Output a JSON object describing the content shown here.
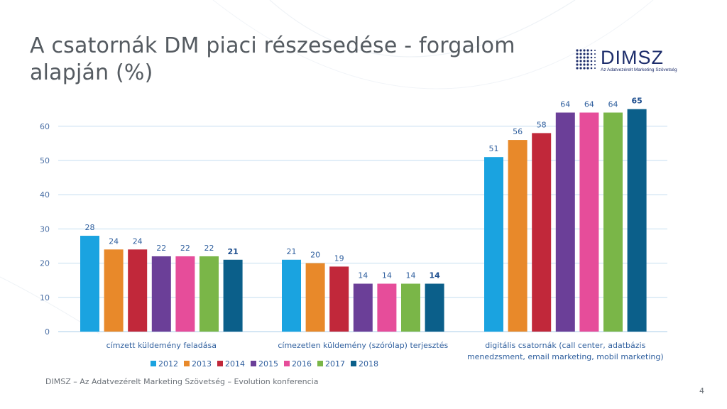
{
  "title_lines": [
    "A csatornák DM piaci részesedése - forgalom",
    "alapján (%)"
  ],
  "logo": {
    "text": "DIMSZ",
    "subtitle": "Az Adatvezérelt Marketing Szövetség"
  },
  "footer": "DIMSZ – Az Adatvezérelt Marketing Szövetség – Evolution konferencia",
  "page_number": "4",
  "colors": {
    "title": "#555b61",
    "gridline": "#c5def0",
    "axis_text": "#4a6fa5",
    "value_label": "#2f5f9e",
    "category_label": "#2f5f9e"
  },
  "chart_data": {
    "type": "bar",
    "title": "A csatornák DM piaci részesedése - forgalom alapján (%)",
    "categories": [
      [
        "címzett küldemény feladása"
      ],
      [
        "címezetlen küldemény (szórólap) terjesztés"
      ],
      [
        "digitális csatornák (call center, adatbázis",
        "menedzsment, email marketing, mobil marketing)"
      ]
    ],
    "series": [
      {
        "name": "2012",
        "color": "#1aa3e0",
        "values": [
          28,
          21,
          51
        ]
      },
      {
        "name": "2013",
        "color": "#e8892a",
        "values": [
          24,
          20,
          56
        ]
      },
      {
        "name": "2014",
        "color": "#c1283a",
        "values": [
          24,
          19,
          58
        ]
      },
      {
        "name": "2015",
        "color": "#6b3f98",
        "values": [
          22,
          14,
          64
        ]
      },
      {
        "name": "2016",
        "color": "#e64d9a",
        "values": [
          22,
          14,
          64
        ]
      },
      {
        "name": "2017",
        "color": "#7ab648",
        "values": [
          22,
          14,
          64
        ]
      },
      {
        "name": "2018",
        "color": "#0b5f8a",
        "values": [
          21,
          14,
          65
        ]
      }
    ],
    "highlight_series": "2018",
    "yticks": [
      0,
      10,
      20,
      30,
      40,
      50,
      60
    ],
    "ylim": [
      0,
      65
    ],
    "grid": true,
    "legend_position": "bottom"
  }
}
